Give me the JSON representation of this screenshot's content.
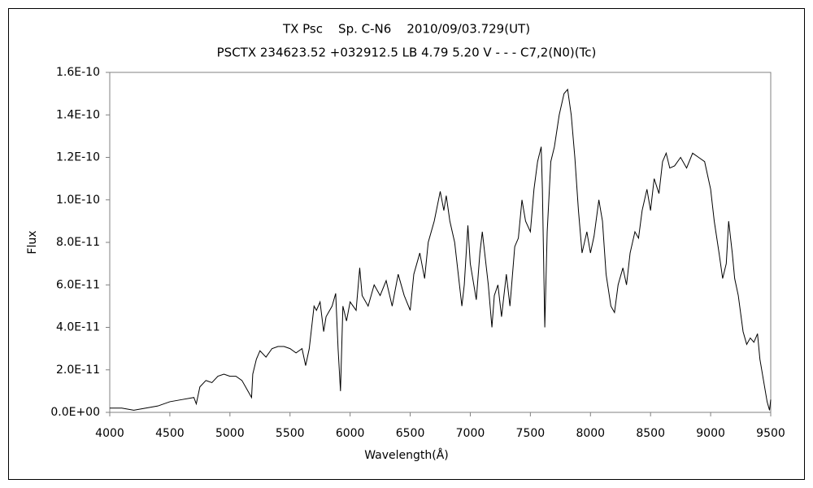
{
  "chart_data": {
    "type": "line",
    "title": "TX Psc    Sp. C-N6    2010/09/03.729(UT)",
    "subtitle": "PSCTX 234623.52 +032912.5 LB 4.79 5.20 V - - - C7,2(N0)(Tc)",
    "x_label": "Wavelength(Å)",
    "y_label": "Flux",
    "xlim": [
      4000,
      9500
    ],
    "xticks": [
      4000,
      4500,
      5000,
      5500,
      6000,
      6500,
      7000,
      7500,
      8000,
      8500,
      9000,
      9500
    ],
    "ylim": [
      0,
      1.6e-10
    ],
    "yticks": [
      {
        "value": 0,
        "label": "0.0E+00"
      },
      {
        "value": 2e-11,
        "label": "2.0E-11"
      },
      {
        "value": 4e-11,
        "label": "4.0E-11"
      },
      {
        "value": 6e-11,
        "label": "6.0E-11"
      },
      {
        "value": 8e-11,
        "label": "8.0E-11"
      },
      {
        "value": 1e-10,
        "label": "1.0E-10"
      },
      {
        "value": 1.2e-10,
        "label": "1.2E-10"
      },
      {
        "value": 1.4e-10,
        "label": "1.4E-10"
      },
      {
        "value": 1.6e-10,
        "label": "1.6E-10"
      }
    ],
    "color": "#000000",
    "x": [
      4000,
      4100,
      4200,
      4300,
      4400,
      4500,
      4600,
      4700,
      4720,
      4750,
      4800,
      4850,
      4900,
      4950,
      5000,
      5050,
      5100,
      5150,
      5180,
      5190,
      5220,
      5250,
      5300,
      5350,
      5400,
      5450,
      5500,
      5550,
      5600,
      5630,
      5660,
      5700,
      5720,
      5750,
      5780,
      5800,
      5850,
      5880,
      5900,
      5920,
      5940,
      5970,
      6000,
      6050,
      6080,
      6100,
      6150,
      6200,
      6250,
      6300,
      6350,
      6400,
      6450,
      6500,
      6530,
      6580,
      6620,
      6650,
      6700,
      6750,
      6780,
      6800,
      6830,
      6870,
      6900,
      6930,
      6950,
      6980,
      7000,
      7050,
      7080,
      7100,
      7130,
      7150,
      7180,
      7200,
      7230,
      7260,
      7300,
      7330,
      7370,
      7400,
      7430,
      7460,
      7500,
      7530,
      7560,
      7590,
      7600,
      7620,
      7640,
      7670,
      7700,
      7740,
      7780,
      7810,
      7840,
      7870,
      7900,
      7930,
      7970,
      8000,
      8030,
      8070,
      8100,
      8130,
      8170,
      8200,
      8230,
      8270,
      8300,
      8330,
      8370,
      8400,
      8430,
      8470,
      8500,
      8530,
      8570,
      8600,
      8630,
      8660,
      8700,
      8750,
      8800,
      8850,
      8900,
      8950,
      9000,
      9030,
      9070,
      9100,
      9130,
      9150,
      9180,
      9200,
      9230,
      9270,
      9300,
      9330,
      9360,
      9390,
      9410,
      9440,
      9470,
      9490,
      9500
    ],
    "values": [
      2e-12,
      2e-12,
      1e-12,
      2e-12,
      3e-12,
      5e-12,
      6e-12,
      7e-12,
      4e-12,
      1.2e-11,
      1.5e-11,
      1.4e-11,
      1.7e-11,
      1.8e-11,
      1.7e-11,
      1.7e-11,
      1.5e-11,
      1e-11,
      7e-12,
      1.8e-11,
      2.5e-11,
      2.9e-11,
      2.6e-11,
      3e-11,
      3.1e-11,
      3.1e-11,
      3e-11,
      2.8e-11,
      3e-11,
      2.2e-11,
      3e-11,
      5e-11,
      4.8e-11,
      5.2e-11,
      3.8e-11,
      4.5e-11,
      5e-11,
      5.6e-11,
      3e-11,
      1e-11,
      5e-11,
      4.3e-11,
      5.2e-11,
      4.8e-11,
      6.8e-11,
      5.5e-11,
      5e-11,
      6e-11,
      5.5e-11,
      6.2e-11,
      5e-11,
      6.5e-11,
      5.5e-11,
      4.8e-11,
      6.5e-11,
      7.5e-11,
      6.3e-11,
      8e-11,
      9e-11,
      1.04e-10,
      9.5e-11,
      1.02e-10,
      9e-11,
      8e-11,
      6.5e-11,
      5e-11,
      6e-11,
      8.8e-11,
      7e-11,
      5.3e-11,
      7.5e-11,
      8.5e-11,
      7e-11,
      6e-11,
      4e-11,
      5.5e-11,
      6e-11,
      4.5e-11,
      6.5e-11,
      5e-11,
      7.8e-11,
      8.2e-11,
      1e-10,
      9e-11,
      8.5e-11,
      1.05e-10,
      1.18e-10,
      1.25e-10,
      1.05e-10,
      4e-11,
      8.5e-11,
      1.18e-10,
      1.25e-10,
      1.4e-10,
      1.5e-10,
      1.52e-10,
      1.4e-10,
      1.2e-10,
      9.5e-11,
      7.5e-11,
      8.5e-11,
      7.5e-11,
      8.3e-11,
      1e-10,
      9e-11,
      6.5e-11,
      5e-11,
      4.7e-11,
      6e-11,
      6.8e-11,
      6e-11,
      7.5e-11,
      8.5e-11,
      8.2e-11,
      9.5e-11,
      1.05e-10,
      9.5e-11,
      1.1e-10,
      1.03e-10,
      1.18e-10,
      1.22e-10,
      1.15e-10,
      1.16e-10,
      1.2e-10,
      1.15e-10,
      1.22e-10,
      1.2e-10,
      1.18e-10,
      1.05e-10,
      9e-11,
      7.5e-11,
      6.3e-11,
      7e-11,
      9e-11,
      7.5e-11,
      6.3e-11,
      5.5e-11,
      3.8e-11,
      3.2e-11,
      3.5e-11,
      3.3e-11,
      3.7e-11,
      2.5e-11,
      1.5e-11,
      5e-12,
      1e-12,
      6e-12
    ]
  }
}
